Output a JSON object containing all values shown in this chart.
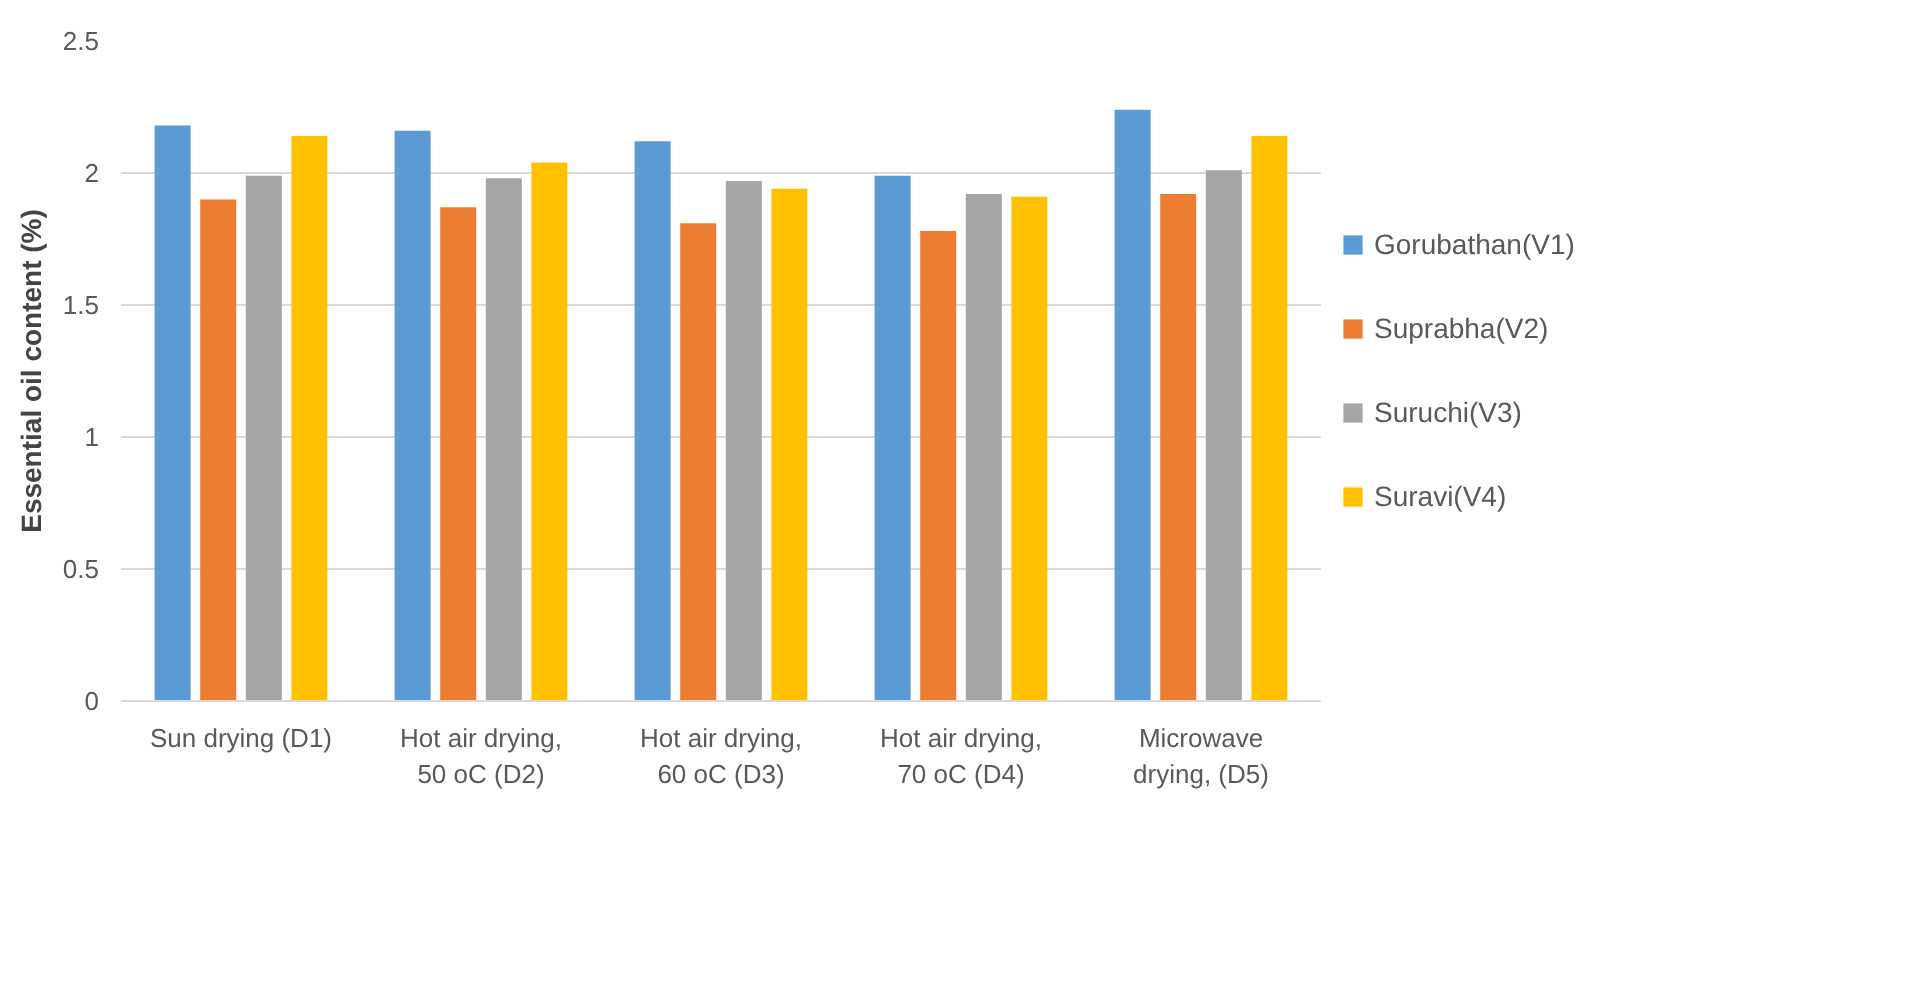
{
  "chart_data": {
    "type": "bar",
    "ylabel": "Essential oil content (%)",
    "categories": [
      "Sun drying (D1)",
      "Hot air drying, 50 oC (D2)",
      "Hot air drying, 60 oC (D3)",
      "Hot air drying, 70 oC (D4)",
      "Microwave drying, (D5)"
    ],
    "series": [
      {
        "name": "Gorubathan(V1)",
        "color": "#5b9bd5",
        "values": [
          2.18,
          2.16,
          2.12,
          1.99,
          2.24
        ]
      },
      {
        "name": "Suprabha(V2)",
        "color": "#ed7d31",
        "values": [
          1.9,
          1.87,
          1.81,
          1.78,
          1.92
        ]
      },
      {
        "name": "Suruchi(V3)",
        "color": "#a5a5a5",
        "values": [
          1.99,
          1.98,
          1.97,
          1.92,
          2.01
        ]
      },
      {
        "name": "Suravi(V4)",
        "color": "#ffc000",
        "values": [
          2.14,
          2.04,
          1.94,
          1.91,
          2.14
        ]
      }
    ],
    "ylim": [
      0,
      2.5
    ],
    "yticks": [
      0,
      0.5,
      1,
      1.5,
      2,
      2.5
    ],
    "grid": "y",
    "legend": "right"
  }
}
